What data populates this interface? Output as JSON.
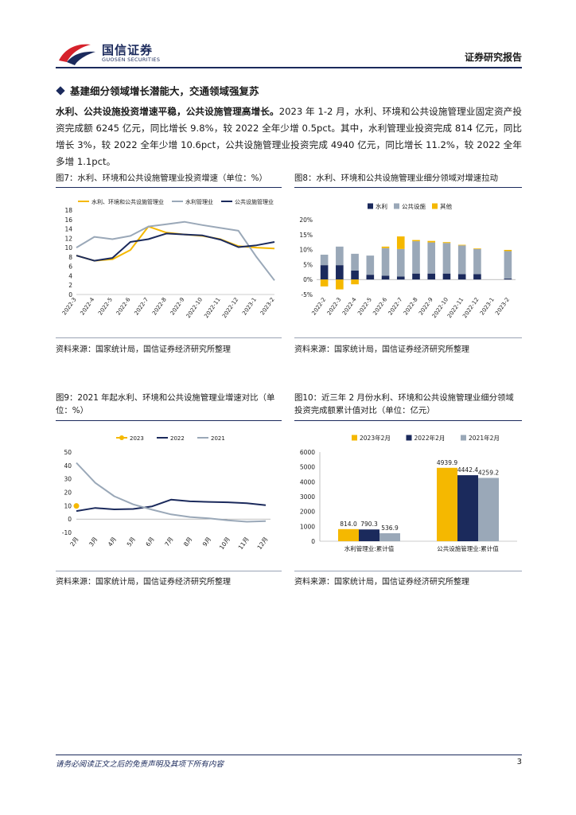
{
  "header": {
    "logo_text": "国信证券",
    "logo_sub": "GUOSEN SECURITIES",
    "report_type": "证券研究报告"
  },
  "section": {
    "title": "基建细分领域增长潜能大，交通领域强复苏"
  },
  "paragraph": {
    "lead": "水利、公共设施投资增速平稳，公共设施管理高增长。",
    "body": "2023 年 1-2 月，水利、环境和公共设施管理业固定资产投资完成额 6245 亿元，同比增长 9.8%，较 2022 全年少增 0.5pct。其中，水利管理业投资完成 814 亿元，同比增长 3%，较 2022 全年少增 10.6pct，公共设施管理业投资完成 4940 亿元，同比增长 11.2%，较 2022 全年多增 1.1pct。"
  },
  "figures": {
    "fig7_title": "图7：水利、环境和公共设施管理业投资增速（单位：%）",
    "fig8_title": "图8：水利、环境和公共设施管理业细分领域对增速拉动",
    "fig9_title": "图9：2021 年起水利、环境和公共设施管理业增速对比（单位：%）",
    "fig10_title": "图10：近三年 2 月份水利、环境和公共设施管理业细分领域投资完成额累计值对比（单位：亿元）",
    "source": "资料来源：国家统计局，国信证券经济研究所整理"
  },
  "footer": {
    "disclaimer": "请务必阅读正文之后的免责声明及其项下所有内容",
    "page": "3"
  },
  "colors": {
    "navy": "#1b2a5c",
    "gold": "#f5b800",
    "gray": "#9aa8b8",
    "red": "#d6212b"
  },
  "chart_data": [
    {
      "id": "fig7",
      "type": "line",
      "categories": [
        "2022-3",
        "2022-4",
        "2022-5",
        "2022-6",
        "2022-7",
        "2022-8",
        "2022-9",
        "2022-10",
        "2022-11",
        "2022-12",
        "2023-1",
        "2023-2"
      ],
      "series": [
        {
          "name": "水利、环境和公共设施管理业",
          "color": "#f5b800",
          "values": [
            8.3,
            7.2,
            7.5,
            9.5,
            14.5,
            13.2,
            12.8,
            12.5,
            11.8,
            10.3,
            10.0,
            9.8
          ]
        },
        {
          "name": "水利管理业",
          "color": "#9aa8b8",
          "values": [
            10.0,
            12.3,
            11.8,
            12.5,
            14.5,
            15.0,
            15.5,
            14.8,
            14.2,
            13.6,
            8.0,
            3.0
          ]
        },
        {
          "name": "公共设施管理业",
          "color": "#1b2a5c",
          "values": [
            8.3,
            7.2,
            7.8,
            11.2,
            11.8,
            13.0,
            12.8,
            12.6,
            11.7,
            10.1,
            10.5,
            11.2
          ]
        }
      ],
      "ylim": [
        0,
        18
      ],
      "yticks": [
        0,
        2,
        4,
        6,
        8,
        10,
        12,
        14,
        16,
        18
      ],
      "legend": "top"
    },
    {
      "id": "fig8",
      "type": "bar",
      "stacked": true,
      "categories": [
        "2022-2",
        "2022-3",
        "2022-4",
        "2022-5",
        "2022-6",
        "2022-7",
        "2022-8",
        "2022-9",
        "2022-10",
        "2022-11",
        "2022-12",
        "2023-1",
        "2023-2"
      ],
      "series": [
        {
          "name": "水利",
          "color": "#1b2a5c",
          "values": [
            4.8,
            4.8,
            3.0,
            1.6,
            1.3,
            1.0,
            2.0,
            2.0,
            2.0,
            1.8,
            1.8,
            0,
            0.3
          ]
        },
        {
          "name": "公共设施",
          "color": "#9aa8b8",
          "values": [
            3.5,
            6.2,
            5.6,
            6.4,
            9.2,
            9.2,
            10.8,
            10.4,
            10.2,
            9.6,
            8.4,
            0,
            9.2
          ]
        },
        {
          "name": "其他",
          "color": "#f5b800",
          "values": [
            -2.3,
            -3.3,
            -1.6,
            0,
            0.5,
            4.2,
            0.4,
            0.5,
            0.3,
            0.2,
            0.2,
            0,
            0.4
          ]
        }
      ],
      "ylim": [
        -5,
        20
      ],
      "yticks": [
        "-5%",
        "0%",
        "5%",
        "10%",
        "15%",
        "20%"
      ],
      "legend": "top"
    },
    {
      "id": "fig9",
      "type": "line",
      "categories": [
        "2月",
        "3月",
        "4月",
        "5月",
        "6月",
        "7月",
        "8月",
        "9月",
        "10月",
        "11月",
        "12月"
      ],
      "series": [
        {
          "name": "2023",
          "color": "#f5b800",
          "values": [
            9.8,
            null,
            null,
            null,
            null,
            null,
            null,
            null,
            null,
            null,
            null
          ]
        },
        {
          "name": "2022",
          "color": "#1b2a5c",
          "values": [
            6.0,
            8.3,
            7.2,
            7.5,
            9.5,
            14.5,
            13.2,
            12.8,
            12.5,
            11.8,
            10.3
          ]
        },
        {
          "name": "2021",
          "color": "#9aa8b8",
          "values": [
            42.0,
            27.0,
            17.0,
            11.0,
            7.0,
            3.5,
            1.5,
            0.5,
            -1.0,
            -2.0,
            -1.5
          ]
        }
      ],
      "ylim": [
        -10,
        50
      ],
      "yticks": [
        -10,
        0,
        10,
        20,
        30,
        40,
        50
      ],
      "legend": "top"
    },
    {
      "id": "fig10",
      "type": "bar",
      "categories": [
        "水利管理业:累计值",
        "公共设施管理业:累计值"
      ],
      "series": [
        {
          "name": "2023年2月",
          "color": "#f5b800",
          "values": [
            814.0,
            4939.9
          ]
        },
        {
          "name": "2022年2月",
          "color": "#1b2a5c",
          "values": [
            790.3,
            4442.4
          ]
        },
        {
          "name": "2021年2月",
          "color": "#9aa8b8",
          "values": [
            536.9,
            4259.2
          ]
        }
      ],
      "labels": [
        [
          "814.0",
          "790.3",
          "536.9"
        ],
        [
          "4939.9",
          "4442.4",
          "4259.2"
        ]
      ],
      "ylim": [
        0,
        6000
      ],
      "yticks": [
        0,
        1000,
        2000,
        3000,
        4000,
        5000,
        6000
      ],
      "legend": "top"
    }
  ]
}
